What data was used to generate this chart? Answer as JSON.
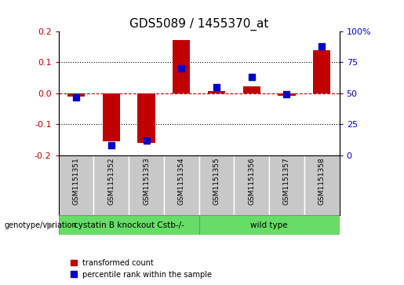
{
  "title": "GDS5089 / 1455370_at",
  "samples": [
    "GSM1151351",
    "GSM1151352",
    "GSM1151353",
    "GSM1151354",
    "GSM1151355",
    "GSM1151356",
    "GSM1151357",
    "GSM1151358"
  ],
  "red_values": [
    -0.01,
    -0.155,
    -0.16,
    0.172,
    0.008,
    0.022,
    -0.008,
    0.14
  ],
  "blue_values_pct": [
    47,
    8,
    12,
    70,
    55,
    63,
    49,
    88
  ],
  "ylim_left": [
    -0.2,
    0.2
  ],
  "ylim_right": [
    0,
    100
  ],
  "yticks_left": [
    -0.2,
    -0.1,
    0.0,
    0.1,
    0.2
  ],
  "yticks_right": [
    0,
    25,
    50,
    75,
    100
  ],
  "ytick_labels_right": [
    "0",
    "25",
    "50",
    "75",
    "100%"
  ],
  "group1_label": "cystatin B knockout Cstb-/-",
  "group2_label": "wild type",
  "group1_indices": [
    0,
    1,
    2,
    3
  ],
  "group2_indices": [
    4,
    5,
    6,
    7
  ],
  "genotype_label": "genotype/variation",
  "legend_red": "transformed count",
  "legend_blue": "percentile rank within the sample",
  "red_color": "#C00000",
  "blue_color": "#0000CC",
  "bar_width": 0.5,
  "blue_marker_size": 6,
  "group1_color": "#66DD66",
  "group2_color": "#66DD66",
  "bg_label": "#C8C8C8",
  "title_fontsize": 11,
  "tick_fontsize": 8,
  "label_fontsize": 7.5
}
